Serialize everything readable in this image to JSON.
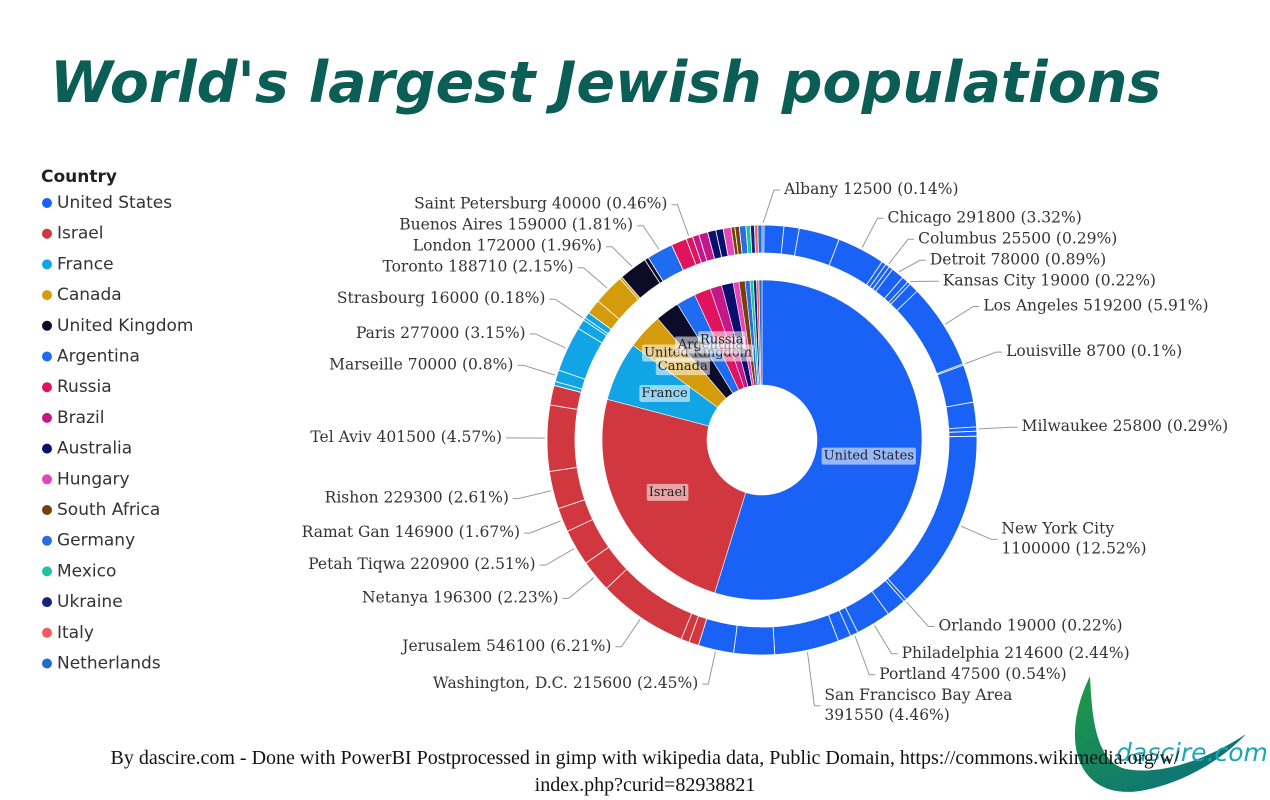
{
  "chart_data": {
    "type": "sunburst",
    "title": "World's largest Jewish populations",
    "legend_title": "Country",
    "legend": true,
    "series": [
      {
        "name": "United States",
        "color": "#1a62f5",
        "value": 4440000,
        "values": [
          12500,
          120000,
          93000,
          248000,
          291800,
          27000,
          25500,
          25000,
          78000,
          40000,
          19000,
          60000,
          519200,
          8700,
          230000,
          150000,
          25800,
          30000,
          1100000,
          19000,
          120000,
          214600,
          47500,
          80000,
          391550,
          248250,
          215600
        ],
        "value_labels": [
          "Albany 12500 (0.14%)",
          null,
          null,
          null,
          "Chicago 291800 (3.32%)",
          null,
          "Columbus 25500 (0.29%)",
          null,
          "Detroit 78000 (0.89%)",
          null,
          "Kansas City 19000 (0.22%)",
          null,
          "Los Angeles 519200 (5.91%)",
          "Louisville 8700 (0.1%)",
          null,
          null,
          "Milwaukee 25800 (0.29%)",
          null,
          [
            "New York City",
            "1100000 (12.52%)"
          ],
          "Orlando 19000 (0.22%)",
          null,
          "Philadelphia 214600 (2.44%)",
          "Portland 47500 (0.54%)",
          null,
          [
            "San Francisco Bay Area",
            "391550 (4.46%)"
          ],
          null,
          "Washington, D.C. 215600 (2.45%)"
        ]
      },
      {
        "name": "Israel",
        "color": "#d1373f",
        "value": 1971000,
        "values": [
          60000,
          50000,
          546100,
          196300,
          220900,
          146900,
          229300,
          401500,
          120000
        ],
        "value_labels": [
          null,
          null,
          "Jerusalem 546100 (6.21%)",
          "Netanya 196300 (2.23%)",
          "Petah Tiqwa 220900 (2.51%)",
          "Ramat Gan 146900 (1.67%)",
          "Rishon 229300 (2.61%)",
          "Tel Aviv 401500 (4.57%)",
          null
        ]
      },
      {
        "name": "France",
        "color": "#12a5e6",
        "value": 485000,
        "values": [
          25000,
          70000,
          277000,
          60000,
          16000,
          37000
        ],
        "value_labels": [
          null,
          "Marseille 70000 (0.8%)",
          "Paris 277000 (3.15%)",
          null,
          "Strasbourg 16000 (0.18%)",
          null
        ]
      },
      {
        "name": "Canada",
        "color": "#d49b0c",
        "value": 293710,
        "values": [
          90000,
          188710,
          15000
        ],
        "value_labels": [
          null,
          "Toronto 188710 (2.15%)",
          null
        ]
      },
      {
        "name": "United Kingdom",
        "color": "#0c0c28",
        "value": 197000,
        "values": [
          172000,
          25000
        ],
        "value_labels": [
          "London 172000 (1.96%)",
          null
        ]
      },
      {
        "name": "Argentina",
        "color": "#1f6cf0",
        "value": 159000,
        "values": [
          159000
        ],
        "value_labels": [
          "Buenos Aires 159000 (1.81%)"
        ]
      },
      {
        "name": "Russia",
        "color": "#e0145e",
        "value": 135000,
        "values": [
          95000,
          40000
        ],
        "value_labels": [
          null,
          "Saint Petersburg 40000 (0.46%)"
        ]
      },
      {
        "name": "Brazil",
        "color": "#c2188a",
        "value": 95000,
        "values": [
          40000,
          55000
        ]
      },
      {
        "name": "Australia",
        "color": "#0a0f6e",
        "value": 95000,
        "values": [
          50000,
          45000
        ]
      },
      {
        "name": "Hungary",
        "color": "#e545b5",
        "value": 48000,
        "values": [
          48000
        ]
      },
      {
        "name": "South Africa",
        "color": "#744109",
        "value": 50000,
        "values": [
          23000,
          27000
        ]
      },
      {
        "name": "Germany",
        "color": "#2b6be3",
        "value": 40000,
        "values": [
          40000
        ]
      },
      {
        "name": "Mexico",
        "color": "#1ec3a0",
        "value": 27000,
        "values": [
          27000
        ]
      },
      {
        "name": "Ukraine",
        "color": "#13227a",
        "value": 25000,
        "values": [
          25000
        ]
      },
      {
        "name": "Italy",
        "color": "#f25c5c",
        "value": 20000,
        "values": [
          20000
        ]
      },
      {
        "name": "Netherlands",
        "color": "#1d6ec6",
        "value": 25000,
        "values": [
          25000
        ]
      }
    ],
    "footer": [
      "By dascire.com - Done with PowerBI Postprocessed in gimp with wikipedia data, Public Domain, https://commons.wikimedia.org/w/",
      "index.php?curid=82938821"
    ],
    "logo_text": "dascire.com"
  }
}
